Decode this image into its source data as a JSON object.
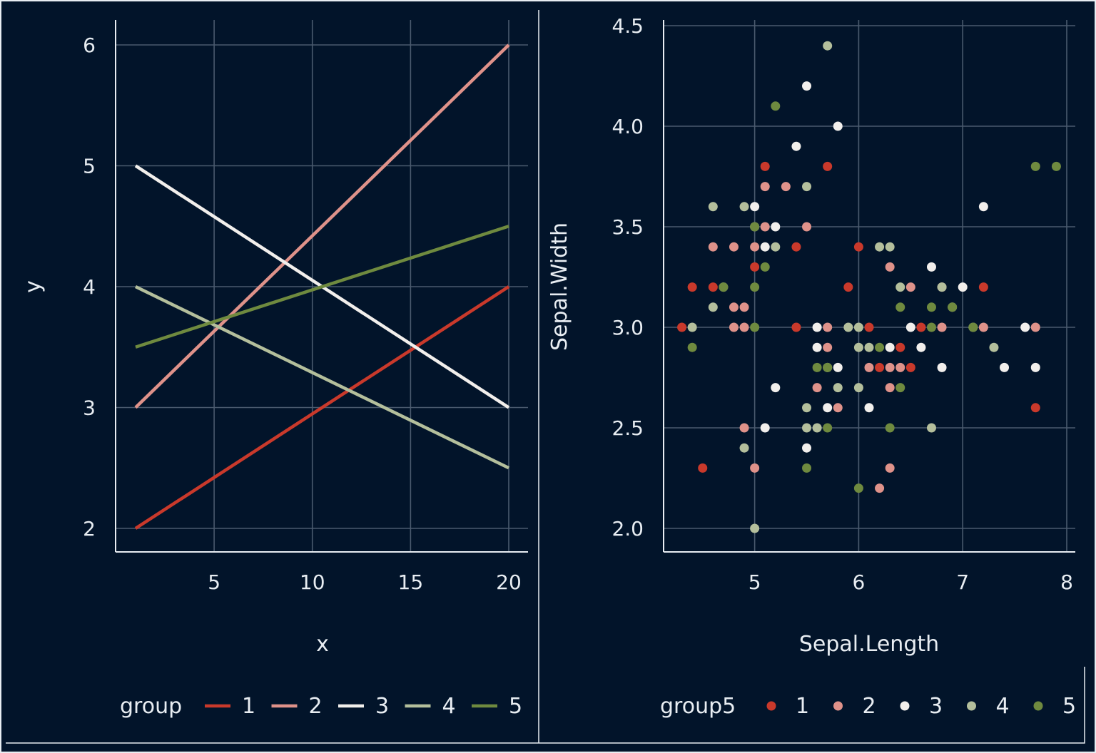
{
  "colors": {
    "background": "#02142a",
    "grid": "#4a5a6e",
    "axis": "#e8edf2",
    "text": "#e8edf2",
    "group_palette": [
      "#c9392b",
      "#df928a",
      "#f2efec",
      "#b4bf9c",
      "#6f8a3f"
    ]
  },
  "chart_data": [
    {
      "type": "line",
      "xlabel": "x",
      "ylabel": "y",
      "xlim": [
        1,
        20
      ],
      "ylim": [
        2,
        6
      ],
      "x_ticks": [
        5,
        10,
        15,
        20
      ],
      "x_tick_labels": [
        "5",
        "10",
        "15",
        "20"
      ],
      "y_ticks": [
        2,
        3,
        4,
        5,
        6
      ],
      "y_tick_labels": [
        "2",
        "3",
        "4",
        "5",
        "6"
      ],
      "grid": true,
      "legend": {
        "title": "group",
        "position": "bottom",
        "labels": [
          "1",
          "2",
          "3",
          "4",
          "5"
        ]
      },
      "series": [
        {
          "name": "1",
          "x": [
            1,
            20
          ],
          "y": [
            2,
            4
          ]
        },
        {
          "name": "2",
          "x": [
            1,
            20
          ],
          "y": [
            3,
            6
          ]
        },
        {
          "name": "3",
          "x": [
            1,
            20
          ],
          "y": [
            5,
            3
          ]
        },
        {
          "name": "4",
          "x": [
            1,
            20
          ],
          "y": [
            4,
            2.5
          ]
        },
        {
          "name": "5",
          "x": [
            1,
            20
          ],
          "y": [
            3.5,
            4.5
          ]
        }
      ]
    },
    {
      "type": "scatter",
      "xlabel": "Sepal.Length",
      "ylabel": "Sepal.Width",
      "xlim": [
        4.2,
        8.0
      ],
      "ylim": [
        2.0,
        4.5
      ],
      "x_ticks": [
        5,
        6,
        7,
        8
      ],
      "x_tick_labels": [
        "5",
        "6",
        "7",
        "8"
      ],
      "y_ticks": [
        2.0,
        2.5,
        3.0,
        3.5,
        4.0,
        4.5
      ],
      "y_tick_labels": [
        "2.0",
        "2.5",
        "3.0",
        "3.5",
        "4.0",
        "4.5"
      ],
      "grid": true,
      "legend": {
        "title": "group5",
        "position": "bottom",
        "labels": [
          "1",
          "2",
          "3",
          "4",
          "5"
        ]
      },
      "series": [
        {
          "name": "1",
          "points": [
            [
              4.3,
              3.0
            ],
            [
              4.4,
              3.2
            ],
            [
              4.5,
              2.3
            ],
            [
              4.6,
              3.2
            ],
            [
              5.0,
              3.3
            ],
            [
              5.1,
              3.8
            ],
            [
              5.4,
              3.4
            ],
            [
              5.4,
              3.0
            ],
            [
              5.7,
              3.8
            ],
            [
              6.0,
              3.4
            ],
            [
              5.9,
              3.2
            ],
            [
              6.1,
              3.0
            ],
            [
              6.2,
              2.8
            ],
            [
              6.4,
              2.9
            ],
            [
              6.5,
              2.8
            ],
            [
              6.6,
              3.0
            ],
            [
              7.2,
              3.2
            ],
            [
              7.7,
              2.6
            ]
          ]
        },
        {
          "name": "2",
          "points": [
            [
              4.6,
              3.4
            ],
            [
              4.8,
              3.4
            ],
            [
              4.8,
              3.1
            ],
            [
              4.8,
              3.0
            ],
            [
              4.9,
              3.1
            ],
            [
              4.9,
              3.0
            ],
            [
              4.9,
              2.5
            ],
            [
              5.0,
              3.4
            ],
            [
              5.0,
              2.3
            ],
            [
              5.1,
              3.7
            ],
            [
              5.1,
              3.5
            ],
            [
              5.3,
              3.7
            ],
            [
              5.5,
              3.5
            ],
            [
              5.6,
              2.7
            ],
            [
              5.7,
              3.0
            ],
            [
              5.7,
              2.9
            ],
            [
              5.8,
              2.6
            ],
            [
              6.1,
              2.8
            ],
            [
              6.2,
              2.2
            ],
            [
              6.3,
              3.3
            ],
            [
              6.3,
              2.8
            ],
            [
              6.3,
              2.7
            ],
            [
              6.3,
              2.3
            ],
            [
              6.4,
              2.8
            ],
            [
              6.5,
              3.2
            ],
            [
              6.8,
              3.0
            ],
            [
              6.8,
              3.2
            ],
            [
              7.2,
              3.0
            ],
            [
              7.7,
              3.0
            ]
          ]
        },
        {
          "name": "3",
          "points": [
            [
              5.0,
              3.6
            ],
            [
              5.1,
              3.4
            ],
            [
              5.1,
              2.5
            ],
            [
              5.2,
              3.5
            ],
            [
              5.2,
              2.7
            ],
            [
              5.4,
              3.9
            ],
            [
              5.5,
              4.2
            ],
            [
              5.5,
              2.4
            ],
            [
              5.6,
              3.0
            ],
            [
              5.6,
              2.9
            ],
            [
              5.7,
              2.6
            ],
            [
              5.8,
              4.0
            ],
            [
              5.8,
              2.8
            ],
            [
              6.1,
              2.6
            ],
            [
              6.3,
              2.9
            ],
            [
              6.5,
              3.0
            ],
            [
              6.6,
              2.9
            ],
            [
              6.7,
              3.3
            ],
            [
              6.8,
              2.8
            ],
            [
              7.0,
              3.2
            ],
            [
              7.2,
              3.6
            ],
            [
              7.4,
              2.8
            ],
            [
              7.6,
              3.0
            ],
            [
              7.7,
              2.8
            ]
          ]
        },
        {
          "name": "4",
          "points": [
            [
              4.4,
              3.0
            ],
            [
              4.6,
              3.6
            ],
            [
              4.6,
              3.1
            ],
            [
              4.7,
              3.2
            ],
            [
              4.9,
              3.6
            ],
            [
              4.9,
              2.4
            ],
            [
              5.0,
              3.5
            ],
            [
              5.0,
              2.0
            ],
            [
              5.2,
              3.4
            ],
            [
              5.5,
              3.7
            ],
            [
              5.5,
              2.6
            ],
            [
              5.5,
              2.5
            ],
            [
              5.6,
              2.5
            ],
            [
              5.7,
              4.4
            ],
            [
              5.7,
              2.8
            ],
            [
              5.8,
              2.7
            ],
            [
              5.9,
              3.0
            ],
            [
              6.0,
              2.9
            ],
            [
              6.0,
              2.7
            ],
            [
              6.0,
              3.0
            ],
            [
              6.1,
              2.9
            ],
            [
              6.2,
              3.4
            ],
            [
              6.3,
              3.4
            ],
            [
              6.4,
              3.2
            ],
            [
              6.7,
              2.5
            ],
            [
              6.8,
              3.2
            ],
            [
              6.9,
              3.1
            ],
            [
              7.1,
              3.0
            ],
            [
              7.3,
              2.9
            ]
          ]
        },
        {
          "name": "5",
          "points": [
            [
              4.4,
              2.9
            ],
            [
              4.7,
              3.2
            ],
            [
              5.0,
              3.5
            ],
            [
              5.0,
              3.2
            ],
            [
              5.0,
              3.0
            ],
            [
              5.1,
              3.3
            ],
            [
              5.2,
              4.1
            ],
            [
              5.5,
              2.3
            ],
            [
              5.6,
              2.8
            ],
            [
              5.7,
              2.5
            ],
            [
              5.7,
              2.8
            ],
            [
              6.0,
              2.2
            ],
            [
              6.2,
              2.9
            ],
            [
              6.3,
              2.5
            ],
            [
              6.4,
              3.1
            ],
            [
              6.4,
              2.7
            ],
            [
              6.7,
              3.1
            ],
            [
              6.7,
              3.0
            ],
            [
              6.9,
              3.1
            ],
            [
              7.1,
              3.0
            ],
            [
              7.7,
              3.8
            ],
            [
              7.9,
              3.8
            ]
          ]
        }
      ]
    }
  ]
}
